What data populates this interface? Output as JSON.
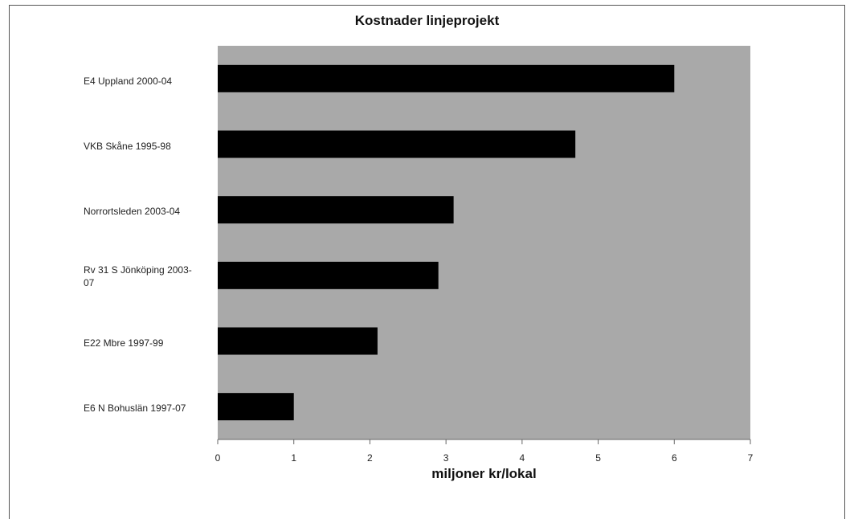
{
  "chart_data": {
    "type": "bar",
    "orientation": "horizontal",
    "title": "Kostnader linjeprojekt",
    "xlabel": "miljoner kr/lokal",
    "ylabel": "",
    "categories": [
      "E4 Uppland 2000-04",
      "VKB Skåne 1995-98",
      "Norrortsleden 2003-04",
      "Rv 31 S Jönköping 2003-07",
      "E22 Mbre 1997-99",
      "E6 N Bohuslän 1997-07"
    ],
    "values": [
      6.0,
      4.7,
      3.1,
      2.9,
      2.1,
      1.0
    ],
    "xlim": [
      0,
      7
    ],
    "xticks": [
      "0",
      "1",
      "2",
      "3",
      "4",
      "5",
      "6",
      "7"
    ],
    "grid": false,
    "legend": "none",
    "colors": {
      "bar": "#000000",
      "plot_bg": "#a9a9a9"
    }
  }
}
